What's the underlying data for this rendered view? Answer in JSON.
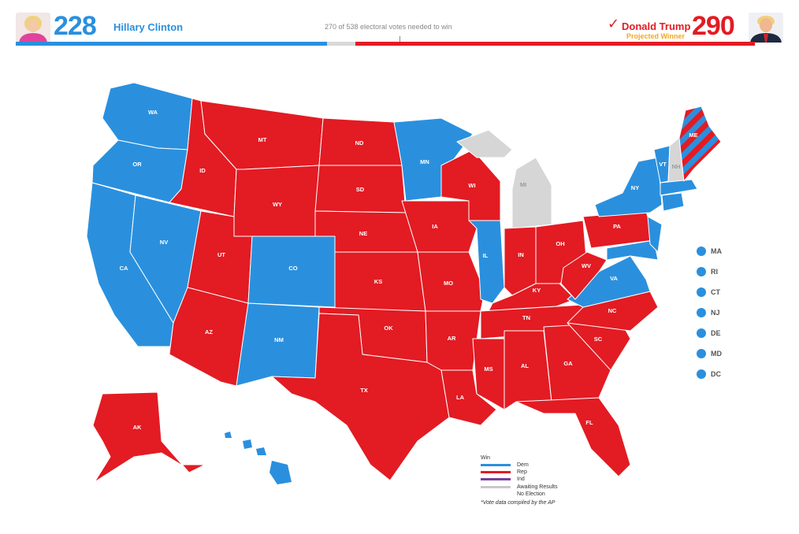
{
  "header": {
    "dem": {
      "votes": "228",
      "name": "Hillary Clinton"
    },
    "rep": {
      "votes": "290",
      "name": "Donald Trump",
      "status": "Projected Winner",
      "check": "✓"
    },
    "needed_text": "270 of 538 electoral votes needed to win",
    "bar": {
      "dem_votes": 228,
      "rep_votes": 290,
      "total": 538
    }
  },
  "colors": {
    "dem": "#2a90de",
    "rep": "#e31b23",
    "ind": "#7b3fa0",
    "awaiting": "#c9c9c9",
    "projected": "#f5a623"
  },
  "states": {
    "WA": "WA",
    "OR": "OR",
    "CA": "CA",
    "NV": "NV",
    "ID": "ID",
    "MT": "MT",
    "WY": "WY",
    "UT": "UT",
    "AZ": "AZ",
    "CO": "CO",
    "NM": "NM",
    "ND": "ND",
    "SD": "SD",
    "NE": "NE",
    "KS": "KS",
    "OK": "OK",
    "TX": "TX",
    "MN": "MN",
    "IA": "IA",
    "MO": "MO",
    "AR": "AR",
    "LA": "LA",
    "WI": "WI",
    "IL": "IL",
    "MI": "MI",
    "IN": "IN",
    "OH": "OH",
    "KY": "KY",
    "TN": "TN",
    "MS": "MS",
    "AL": "AL",
    "GA": "GA",
    "FL": "FL",
    "SC": "SC",
    "NC": "NC",
    "VA": "VA",
    "WV": "WV",
    "PA": "PA",
    "NY": "NY",
    "VT": "VT",
    "NH": "NH",
    "ME": "ME",
    "AK": "AK"
  },
  "small_states": [
    "MA",
    "RI",
    "CT",
    "NJ",
    "DE",
    "MD",
    "DC"
  ],
  "legend": {
    "title": "Win",
    "items": [
      "Dem",
      "Rep",
      "Ind",
      "Awaiting Results",
      "No Election"
    ],
    "note": "*Vote data compiled by the AP"
  }
}
